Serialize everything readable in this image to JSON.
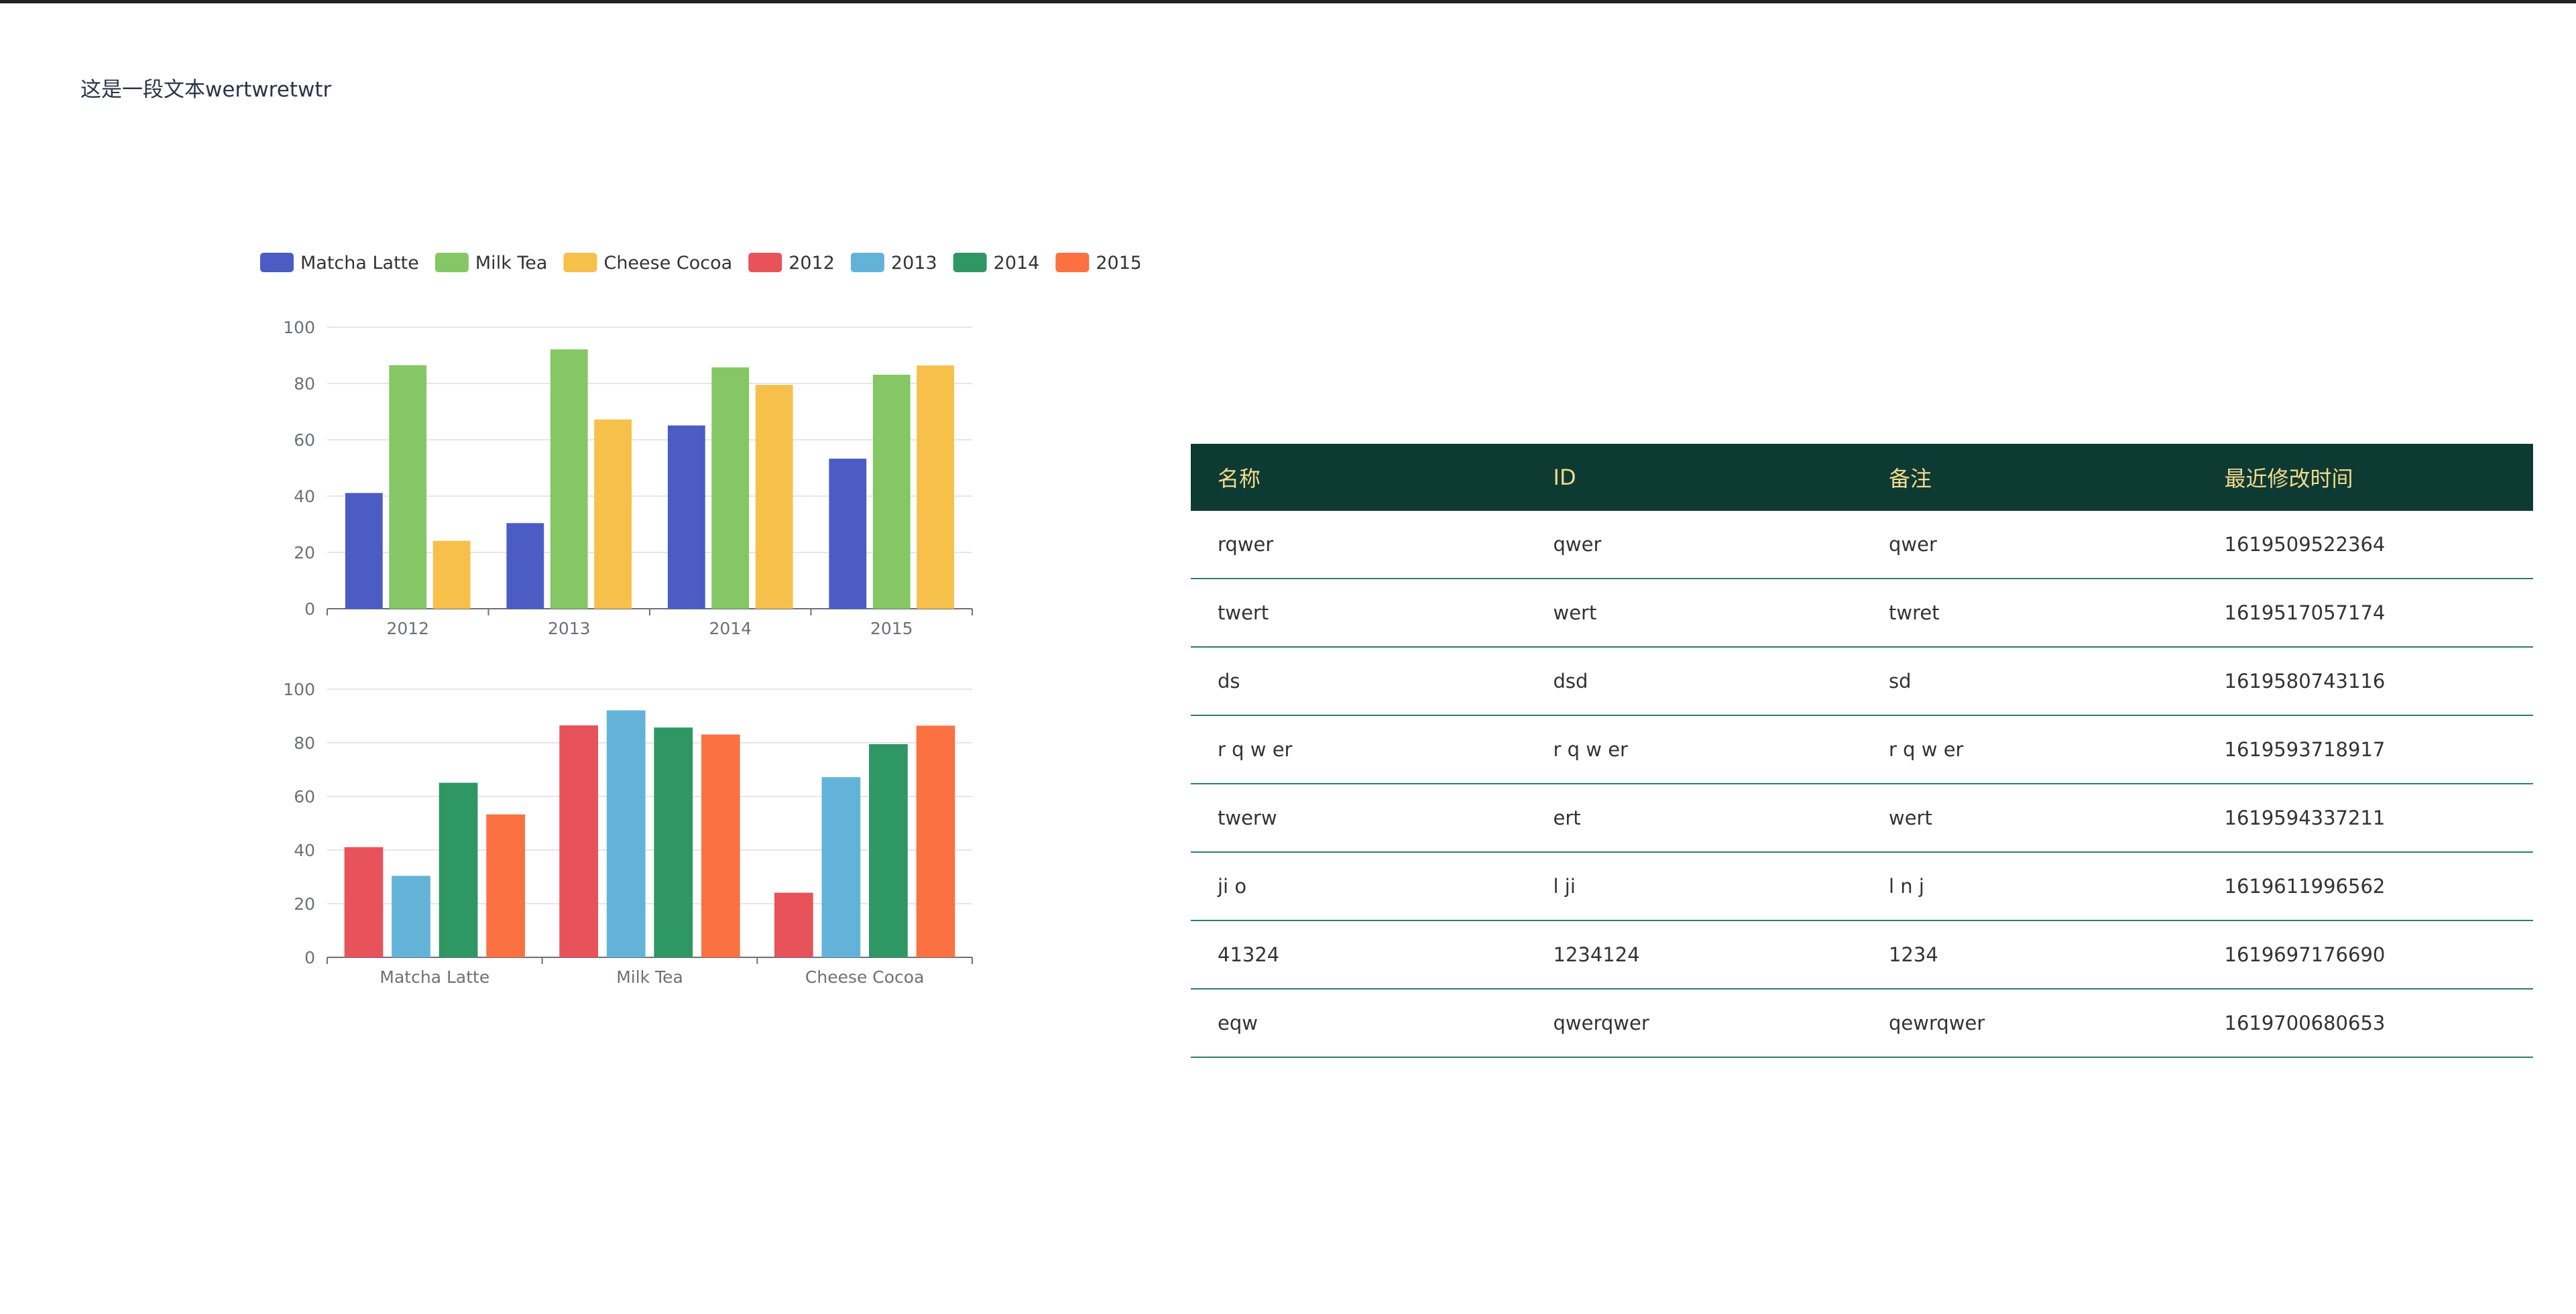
{
  "page": {
    "text": "这是一段文本wertwretwtr",
    "colors": {
      "header_bg": "#0d3a33",
      "header_text": "#f4d98c",
      "row_border": "#2e7d6b"
    }
  },
  "chart_data": [
    {
      "type": "bar",
      "categories": [
        "2012",
        "2013",
        "2014",
        "2015"
      ],
      "series": [
        {
          "name": "Matcha Latte",
          "color": "#4b5cc4",
          "values": [
            41.1,
            30.4,
            65.1,
            53.3
          ]
        },
        {
          "name": "Milk Tea",
          "color": "#85c665",
          "values": [
            86.5,
            92.1,
            85.7,
            83.1
          ]
        },
        {
          "name": "Cheese Cocoa",
          "color": "#f6c04a",
          "values": [
            24.1,
            67.2,
            79.5,
            86.4
          ]
        }
      ],
      "ylim": [
        0,
        100
      ],
      "yticks": [
        0,
        20,
        40,
        60,
        80,
        100
      ],
      "grid": true,
      "legend": "top-left"
    },
    {
      "type": "bar",
      "categories": [
        "Matcha Latte",
        "Milk Tea",
        "Cheese Cocoa"
      ],
      "series": [
        {
          "name": "2012",
          "color": "#e8525a",
          "values": [
            41.1,
            86.5,
            24.1
          ]
        },
        {
          "name": "2013",
          "color": "#63b3d8",
          "values": [
            30.4,
            92.1,
            67.2
          ]
        },
        {
          "name": "2014",
          "color": "#2f9763",
          "values": [
            65.1,
            85.7,
            79.5
          ]
        },
        {
          "name": "2015",
          "color": "#fb7142",
          "values": [
            53.3,
            83.1,
            86.4
          ]
        }
      ],
      "ylim": [
        0,
        100
      ],
      "yticks": [
        0,
        20,
        40,
        60,
        80,
        100
      ],
      "grid": true,
      "legend": "top-left"
    }
  ],
  "table": {
    "headers": [
      "名称",
      "ID",
      "备注",
      "最近修改时间"
    ],
    "rows": [
      [
        "rqwer",
        "qwer",
        "qwer",
        "1619509522364"
      ],
      [
        "twert",
        "wert",
        "twret",
        "1619517057174"
      ],
      [
        "ds",
        "dsd",
        "sd",
        "1619580743116"
      ],
      [
        "r q w er",
        "r q w er",
        "r q w er",
        "1619593718917"
      ],
      [
        "twerw",
        "ert",
        "wert",
        "1619594337211"
      ],
      [
        "ji o",
        "l ji",
        "l n j",
        "1619611996562"
      ],
      [
        "41324",
        "1234124",
        "1234",
        "1619697176690"
      ],
      [
        "eqw",
        "qwerqwer",
        "qewrqwer",
        "1619700680653"
      ]
    ]
  }
}
